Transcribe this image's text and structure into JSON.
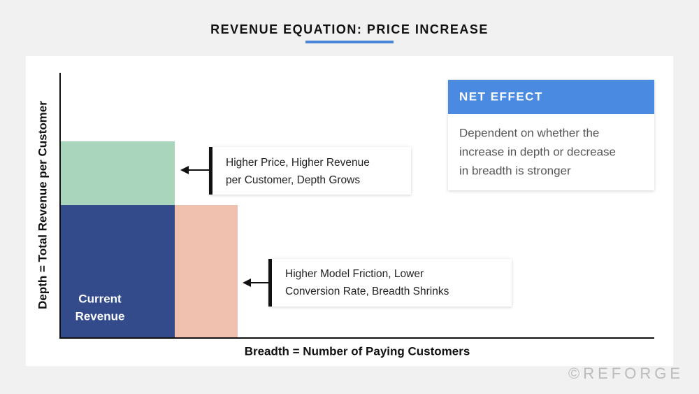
{
  "header": {
    "title": "REVENUE EQUATION: PRICE INCREASE"
  },
  "axes": {
    "y_label": "Depth = Total Revenue per Customer",
    "x_label": "Breadth = Number of Paying Customers"
  },
  "blocks": {
    "current_revenue": [
      "Current",
      "Revenue"
    ]
  },
  "callouts": [
    {
      "lines": [
        "Higher Price, Higher Revenue",
        "per Customer, Depth Grows"
      ]
    },
    {
      "lines": [
        "Higher Model Friction, Lower",
        "Conversion Rate, Breadth Shrinks"
      ]
    }
  ],
  "net_effect": {
    "title": "NET EFFECT",
    "lines": [
      "Dependent on whether the",
      "increase in depth or decrease",
      "in breadth is stronger"
    ]
  },
  "watermark": "©REFORGE"
}
